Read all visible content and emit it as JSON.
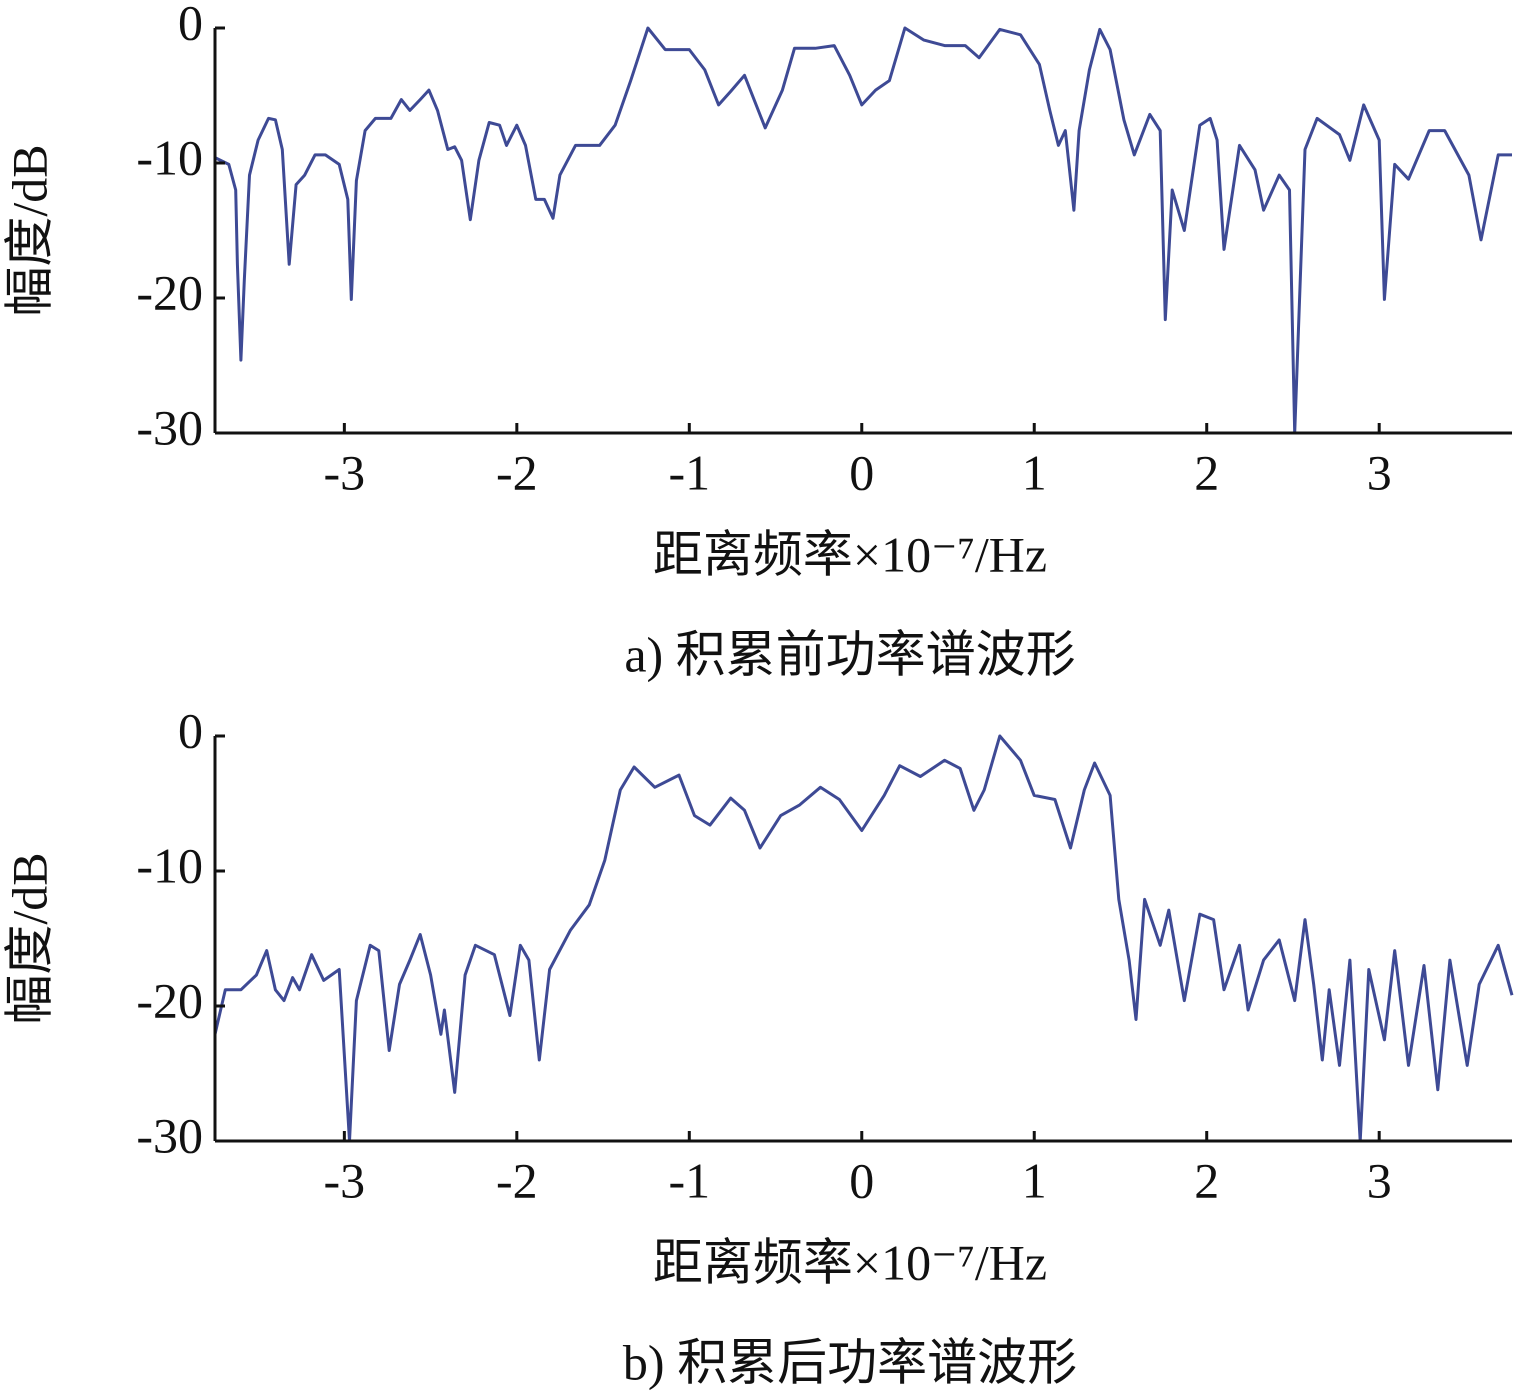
{
  "chart_data": [
    {
      "type": "line",
      "title": "a) 积累前功率谱波形",
      "xlabel": "距离频率×10⁻⁷/Hz",
      "ylabel": "幅度/dB",
      "color": "#3e4a95",
      "xlim": [
        -3.75,
        3.77
      ],
      "ylim": [
        -30,
        0
      ],
      "xticks": [
        -3,
        -2,
        -1,
        0,
        1,
        2,
        3
      ],
      "yticks": [
        -30,
        -20,
        -10,
        0
      ],
      "x": [
        -3.75,
        -3.67,
        -3.63,
        -3.62,
        -3.6,
        -3.58,
        -3.55,
        -3.5,
        -3.44,
        -3.4,
        -3.36,
        -3.32,
        -3.28,
        -3.23,
        -3.17,
        -3.11,
        -3.03,
        -2.98,
        -2.96,
        -2.93,
        -2.88,
        -2.82,
        -2.73,
        -2.67,
        -2.62,
        -2.56,
        -2.51,
        -2.46,
        -2.4,
        -2.36,
        -2.32,
        -2.27,
        -2.22,
        -2.16,
        -2.1,
        -2.06,
        -2,
        -1.95,
        -1.89,
        -1.84,
        -1.79,
        -1.75,
        -1.66,
        -1.52,
        -1.43,
        -1.34,
        -1.24,
        -1.14,
        -1,
        -0.91,
        -0.83,
        -0.76,
        -0.68,
        -0.56,
        -0.46,
        -0.39,
        -0.27,
        -0.16,
        -0.07,
        0,
        0.08,
        0.16,
        0.25,
        0.36,
        0.48,
        0.6,
        0.68,
        0.8,
        0.92,
        1.03,
        1.09,
        1.14,
        1.18,
        1.23,
        1.26,
        1.32,
        1.38,
        1.44,
        1.52,
        1.58,
        1.67,
        1.73,
        1.76,
        1.8,
        1.87,
        1.96,
        2.02,
        2.06,
        2.1,
        2.19,
        2.28,
        2.33,
        2.42,
        2.48,
        2.51,
        2.57,
        2.64,
        2.77,
        2.83,
        2.91,
        3,
        3.03,
        3.09,
        3.17,
        3.29,
        3.38,
        3.52,
        3.59,
        3.69,
        3.77
      ],
      "values": [
        -9.6,
        -10.1,
        -12,
        -17.5,
        -24.6,
        -18.7,
        -10.9,
        -8.3,
        -6.7,
        -6.8,
        -9,
        -17.5,
        -11.6,
        -10.9,
        -9.4,
        -9.4,
        -10.1,
        -12.7,
        -20.1,
        -11.3,
        -7.6,
        -6.7,
        -6.7,
        -5.3,
        -6.1,
        -5.3,
        -4.6,
        -6.1,
        -9,
        -8.8,
        -9.8,
        -14.2,
        -9.8,
        -7,
        -7.2,
        -8.7,
        -7.2,
        -8.7,
        -12.7,
        -12.7,
        -14.1,
        -10.9,
        -8.7,
        -8.7,
        -7.2,
        -3.9,
        0,
        -1.6,
        -1.6,
        -3.1,
        -5.7,
        -4.7,
        -3.5,
        -7.4,
        -4.6,
        -1.5,
        -1.5,
        -1.3,
        -3.5,
        -5.7,
        -4.6,
        -3.9,
        0,
        -0.9,
        -1.3,
        -1.3,
        -2.2,
        -0.1,
        -0.5,
        -2.7,
        -6.1,
        -8.7,
        -7.6,
        -13.5,
        -7.6,
        -3.1,
        -0.1,
        -1.6,
        -6.8,
        -9.4,
        -6.4,
        -7.6,
        -21.6,
        -12,
        -15,
        -7.2,
        -6.7,
        -8.3,
        -16.4,
        -8.7,
        -10.5,
        -13.5,
        -10.9,
        -12,
        -30,
        -9,
        -6.7,
        -7.9,
        -9.8,
        -5.7,
        -8.3,
        -20.1,
        -10.1,
        -11.2,
        -7.6,
        -7.6,
        -10.9,
        -15.7,
        -9.4,
        -9.4
      ]
    },
    {
      "type": "line",
      "title": "b) 积累后功率谱波形",
      "xlabel": "距离频率×10⁻⁷/Hz",
      "ylabel": "幅度/dB",
      "color": "#3e4a95",
      "xlim": [
        -3.75,
        3.77
      ],
      "ylim": [
        -30,
        0
      ],
      "xticks": [
        -3,
        -2,
        -1,
        0,
        1,
        2,
        3
      ],
      "yticks": [
        -30,
        -20,
        -10,
        0
      ],
      "x": [
        -3.75,
        -3.69,
        -3.6,
        -3.51,
        -3.45,
        -3.4,
        -3.35,
        -3.3,
        -3.26,
        -3.19,
        -3.12,
        -3.03,
        -2.97,
        -2.93,
        -2.85,
        -2.8,
        -2.74,
        -2.68,
        -2.62,
        -2.56,
        -2.5,
        -2.44,
        -2.42,
        -2.36,
        -2.3,
        -2.24,
        -2.13,
        -2.04,
        -1.98,
        -1.93,
        -1.87,
        -1.81,
        -1.69,
        -1.58,
        -1.49,
        -1.4,
        -1.32,
        -1.2,
        -1.06,
        -0.97,
        -0.88,
        -0.76,
        -0.68,
        -0.59,
        -0.47,
        -0.36,
        -0.24,
        -0.13,
        0,
        0.13,
        0.22,
        0.34,
        0.48,
        0.57,
        0.65,
        0.71,
        0.8,
        0.92,
        1,
        1.12,
        1.21,
        1.29,
        1.35,
        1.44,
        1.49,
        1.55,
        1.59,
        1.64,
        1.73,
        1.78,
        1.87,
        1.96,
        2.04,
        2.1,
        2.19,
        2.24,
        2.33,
        2.42,
        2.51,
        2.57,
        2.62,
        2.67,
        2.71,
        2.77,
        2.83,
        2.89,
        2.94,
        3.03,
        3.09,
        3.17,
        3.26,
        3.34,
        3.41,
        3.51,
        3.58,
        3.69,
        3.77
      ],
      "values": [
        -22.1,
        -18.8,
        -18.8,
        -17.7,
        -15.9,
        -18.8,
        -19.6,
        -17.9,
        -18.8,
        -16.2,
        -18.1,
        -17.3,
        -30,
        -19.6,
        -15.5,
        -15.9,
        -23.3,
        -18.4,
        -16.6,
        -14.7,
        -17.7,
        -22.1,
        -20.3,
        -26.4,
        -17.7,
        -15.5,
        -16.2,
        -20.7,
        -15.5,
        -16.6,
        -24,
        -17.3,
        -14.4,
        -12.5,
        -9.2,
        -4,
        -2.3,
        -3.8,
        -2.9,
        -5.9,
        -6.6,
        -4.6,
        -5.5,
        -8.3,
        -5.9,
        -5.1,
        -3.8,
        -4.7,
        -7,
        -4.4,
        -2.2,
        -3,
        -1.8,
        -2.4,
        -5.5,
        -4,
        0,
        -1.8,
        -4.4,
        -4.7,
        -8.3,
        -4,
        -2,
        -4.4,
        -12.1,
        -16.6,
        -21,
        -12.1,
        -15.5,
        -12.9,
        -19.6,
        -13.2,
        -13.6,
        -18.8,
        -15.5,
        -20.3,
        -16.6,
        -15.1,
        -19.6,
        -13.6,
        -18.4,
        -24,
        -18.8,
        -24.4,
        -16.6,
        -30,
        -17.3,
        -22.5,
        -15.9,
        -24.4,
        -17,
        -26.2,
        -16.6,
        -24.4,
        -18.4,
        -15.5,
        -19.2
      ]
    }
  ]
}
